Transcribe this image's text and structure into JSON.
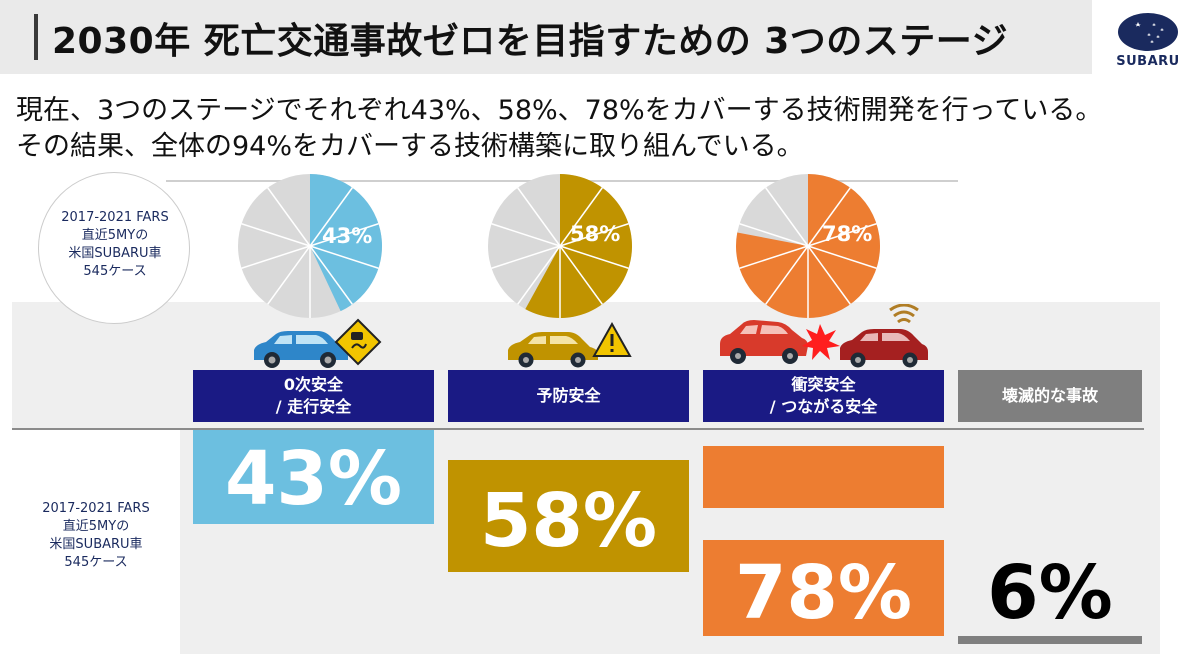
{
  "title": "2030年 死亡交通事故ゼロを目指すための 3つのステージ",
  "logo": {
    "text": "SUBARU"
  },
  "subtitle": {
    "line1": "現在、3つのステージでそれぞれ43%、58%、78%をカバーする技術開発を行っている。",
    "line2": "その結果、全体の94%をカバーする技術構築に取り組んでいる。"
  },
  "source_label": [
    "2017-2021 FARS",
    "直近5MYの",
    "米国SUBARU車",
    "545ケース"
  ],
  "stages": [
    {
      "header": [
        "0次安全",
        "/ 走行安全"
      ],
      "coverage_percent": 43,
      "pie_label": "43%",
      "value_label": "43%",
      "color": "#6cbfe0",
      "icon": "car-slippery-road-warning-icon"
    },
    {
      "header": [
        "予防安全"
      ],
      "coverage_percent": 58,
      "pie_label": "58%",
      "value_label": "58%",
      "color": "#c09300",
      "icon": "car-warning-triangle-icon"
    },
    {
      "header": [
        "衝突安全",
        "/ つながる安全"
      ],
      "coverage_percent": 78,
      "pie_label": "78%",
      "value_label": "78%",
      "color": "#ed7d31",
      "icon": "car-crash-connected-icon"
    },
    {
      "header": [
        "壊滅的な事故"
      ],
      "coverage_percent": 6,
      "value_label": "6%",
      "color": "#7f7f7f"
    }
  ],
  "colors": {
    "navy": "#1a1a84",
    "gray_header": "#7f7f7f",
    "pie_gray": "#d9d9d9"
  }
}
